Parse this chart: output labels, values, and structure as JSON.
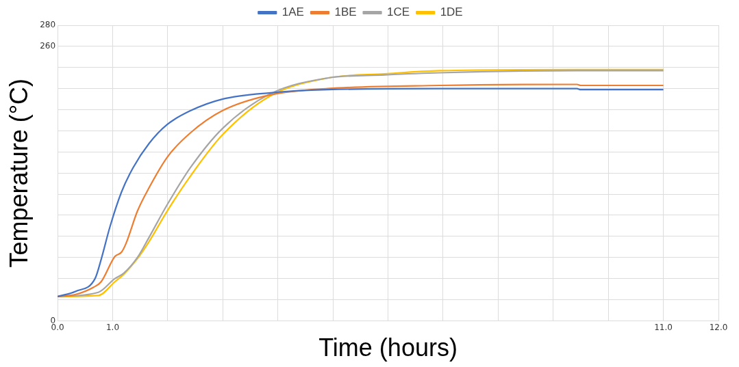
{
  "chart_data": {
    "type": "line",
    "xlabel": "Time (hours)",
    "ylabel": "Temperature (°C)",
    "xlim": [
      0,
      12
    ],
    "xticks": [
      {
        "value": 0,
        "label": "0.0"
      },
      {
        "value": 1,
        "label": "1.0"
      },
      {
        "value": 2,
        "label": null
      },
      {
        "value": 3,
        "label": null
      },
      {
        "value": 4,
        "label": null
      },
      {
        "value": 5,
        "label": null
      },
      {
        "value": 6,
        "label": null
      },
      {
        "value": 7,
        "label": null
      },
      {
        "value": 8,
        "label": null
      },
      {
        "value": 9,
        "label": null
      },
      {
        "value": 10,
        "label": null
      },
      {
        "value": 11,
        "label": "11.0"
      },
      {
        "value": 12,
        "label": "12.0"
      }
    ],
    "ylim": [
      0,
      280
    ],
    "yticks": [
      0,
      {
        "value": 20,
        "label": null
      },
      {
        "value": 40,
        "label": null
      },
      {
        "value": 60,
        "label": null
      },
      {
        "value": 80,
        "label": null
      },
      {
        "value": 100,
        "label": null
      },
      {
        "value": 120,
        "label": null
      },
      {
        "value": 140,
        "label": null
      },
      {
        "value": 160,
        "label": null
      },
      {
        "value": 180,
        "label": null
      },
      {
        "value": 200,
        "label": null
      },
      {
        "value": 220,
        "label": null
      },
      {
        "value": 240,
        "label": null
      },
      260,
      280
    ],
    "grid": true,
    "legend": "top",
    "marker": "none",
    "line_style": "solid",
    "series": [
      {
        "name": "1AE",
        "color": "#4472c4",
        "x": [
          0,
          0.33,
          0.68,
          0.79,
          0.95,
          1.16,
          1.37,
          1.66,
          1.99,
          2.41,
          2.99,
          3.86,
          4.9,
          6.94,
          9.43,
          9.5,
          11.0
        ],
        "values": [
          23,
          28,
          40,
          58,
          89,
          122,
          145,
          168,
          186,
          199,
          210,
          216,
          219,
          220,
          220,
          219,
          219
        ]
      },
      {
        "name": "1BE",
        "color": "#ed7d31",
        "x": [
          0,
          0.33,
          0.66,
          0.79,
          1.04,
          1.16,
          1.24,
          1.45,
          1.66,
          1.99,
          2.41,
          2.99,
          3.86,
          4.9,
          6.94,
          9.43,
          9.5,
          11.0
        ],
        "values": [
          23,
          25,
          32,
          37,
          61,
          65,
          73,
          104,
          126,
          155,
          178,
          199,
          214,
          220,
          223,
          224,
          223,
          223
        ]
      },
      {
        "name": "1CE",
        "color": "#a5a5a5",
        "x": [
          0,
          0.74,
          1.04,
          1.2,
          1.45,
          1.66,
          1.99,
          2.41,
          2.99,
          3.86,
          4.9,
          5.94,
          6.94,
          9.43,
          11.0
        ],
        "values": [
          23,
          27,
          40,
          45,
          60,
          79,
          110,
          145,
          182,
          215,
          230,
          233,
          235,
          237,
          237
        ]
      },
      {
        "name": "1DE",
        "color": "#ffc000",
        "x": [
          0,
          0.74,
          1.04,
          1.2,
          1.45,
          1.66,
          1.99,
          2.41,
          2.99,
          3.86,
          4.9,
          5.94,
          6.94,
          9.43,
          11.0
        ],
        "values": [
          23,
          24,
          37,
          44,
          59,
          75,
          104,
          137,
          176,
          213,
          230,
          234,
          237,
          238,
          238
        ]
      }
    ]
  }
}
